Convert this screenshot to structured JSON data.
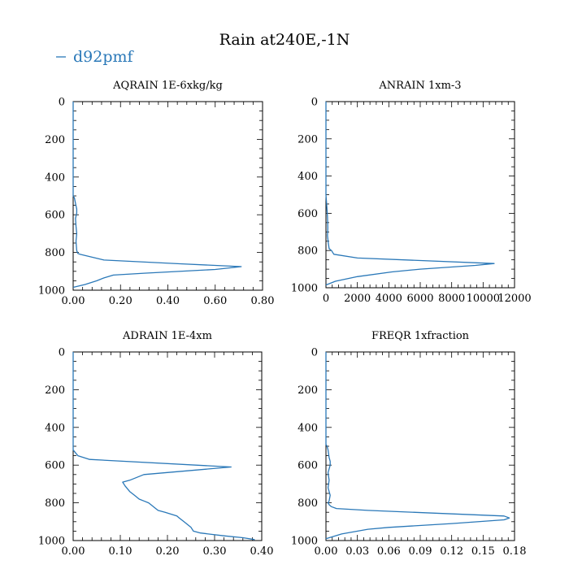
{
  "title": "Rain at240E,-1N",
  "legend": {
    "label": "d92pmf",
    "color": "#2a78b8"
  },
  "line_color": "#2a78b8",
  "chart_data": [
    {
      "type": "line",
      "title": "AQRAIN  1E-6xkg/kg",
      "xlim": [
        0,
        0.8
      ],
      "ylim": [
        0,
        1000
      ],
      "y_inverted": true,
      "xticks": [
        "0.00",
        "0.20",
        "0.40",
        "0.60",
        "0.80"
      ],
      "xtick_values": [
        0,
        0.2,
        0.4,
        0.6,
        0.8
      ],
      "yticks": [
        "0",
        "200",
        "400",
        "600",
        "800",
        "1000"
      ],
      "ytick_values": [
        0,
        200,
        400,
        600,
        800,
        1000
      ],
      "series": [
        {
          "name": "d92pmf",
          "x": [
            0,
            0,
            0.005,
            0.01,
            0.015,
            0.015,
            0.01,
            0.012,
            0.015,
            0.012,
            0.015,
            0.02,
            0.03,
            0.13,
            0.45,
            0.71,
            0.6,
            0.3,
            0.17,
            0.13,
            0.1,
            0.05,
            0.0
          ],
          "y": [
            0,
            500,
            510,
            540,
            570,
            590,
            620,
            660,
            700,
            740,
            790,
            805,
            810,
            840,
            860,
            875,
            890,
            910,
            920,
            935,
            950,
            970,
            985
          ]
        }
      ]
    },
    {
      "type": "line",
      "title": "ANRAIN  1xm-3",
      "xlim": [
        0,
        12000
      ],
      "ylim": [
        0,
        1000
      ],
      "y_inverted": true,
      "xticks": [
        "0",
        "2000",
        "4000",
        "6000",
        "8000",
        "10000",
        "12000"
      ],
      "xtick_values": [
        0,
        2000,
        4000,
        6000,
        8000,
        10000,
        12000
      ],
      "yticks": [
        "0",
        "200",
        "400",
        "600",
        "800",
        "1000"
      ],
      "ytick_values": [
        0,
        200,
        400,
        600,
        800,
        1000
      ],
      "series": [
        {
          "name": "d92pmf",
          "x": [
            0,
            0,
            50,
            100,
            120,
            100,
            150,
            200,
            350,
            500,
            2000,
            10700,
            9500,
            6000,
            4200,
            2000,
            600,
            0
          ],
          "y": [
            0,
            500,
            560,
            620,
            680,
            720,
            760,
            790,
            800,
            820,
            840,
            870,
            880,
            900,
            915,
            940,
            965,
            985
          ]
        }
      ]
    },
    {
      "type": "line",
      "title": "ADRAIN  1E-4xm",
      "xlim": [
        0,
        0.4
      ],
      "ylim": [
        0,
        1000
      ],
      "y_inverted": true,
      "xticks": [
        "0.00",
        "0.10",
        "0.20",
        "0.30",
        "0.40"
      ],
      "xtick_values": [
        0,
        0.1,
        0.2,
        0.3,
        0.4
      ],
      "yticks": [
        "0",
        "200",
        "400",
        "600",
        "800",
        "1000"
      ],
      "ytick_values": [
        0,
        200,
        400,
        600,
        800,
        1000
      ],
      "series": [
        {
          "name": "d92pmf",
          "x": [
            0,
            0,
            0.01,
            0.035,
            0.335,
            0.15,
            0.12,
            0.105,
            0.11,
            0.12,
            0.13,
            0.14,
            0.15,
            0.16,
            0.165,
            0.17,
            0.18,
            0.195,
            0.22,
            0.225,
            0.235,
            0.25,
            0.255,
            0.27,
            0.32,
            0.36,
            0.385
          ],
          "y": [
            0,
            520,
            550,
            570,
            610,
            650,
            680,
            690,
            710,
            740,
            760,
            780,
            790,
            800,
            810,
            820,
            840,
            850,
            870,
            880,
            900,
            930,
            950,
            960,
            975,
            985,
            995
          ]
        }
      ]
    },
    {
      "type": "line",
      "title": "FREQR  1xfraction",
      "xlim": [
        0,
        0.18
      ],
      "ylim": [
        0,
        1000
      ],
      "y_inverted": true,
      "xticks": [
        "0.00",
        "0.03",
        "0.06",
        "0.09",
        "0.12",
        "0.15",
        "0.18"
      ],
      "xtick_values": [
        0,
        0.03,
        0.06,
        0.09,
        0.12,
        0.15,
        0.18
      ],
      "yticks": [
        "0",
        "200",
        "400",
        "600",
        "800",
        "1000"
      ],
      "ytick_values": [
        0,
        200,
        400,
        600,
        800,
        1000
      ],
      "series": [
        {
          "name": "d92pmf",
          "x": [
            0,
            0,
            0.001,
            0.002,
            0.003,
            0.004,
            0.004,
            0.002,
            0.003,
            0.002,
            0.004,
            0.003,
            0.002,
            0.003,
            0.005,
            0.01,
            0.04,
            0.17,
            0.175,
            0.17,
            0.12,
            0.06,
            0.04,
            0.015,
            0.0
          ],
          "y": [
            0,
            490,
            500,
            520,
            560,
            580,
            600,
            640,
            680,
            720,
            760,
            790,
            800,
            810,
            820,
            830,
            840,
            870,
            880,
            890,
            910,
            930,
            940,
            965,
            990
          ]
        }
      ]
    }
  ]
}
